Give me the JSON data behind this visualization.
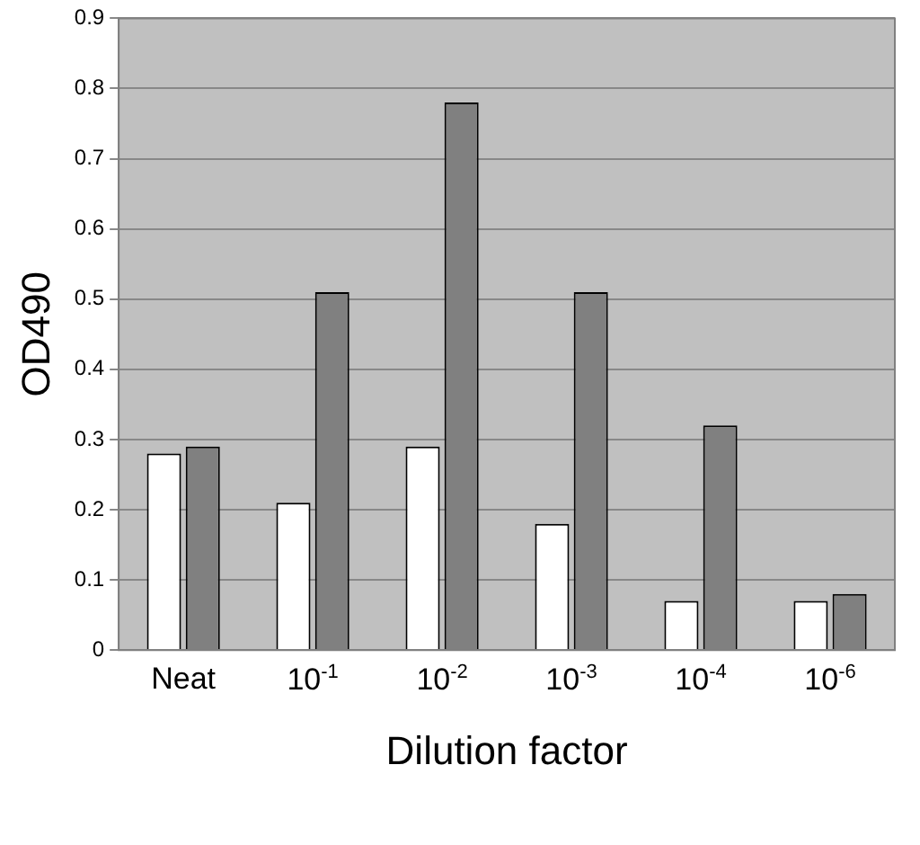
{
  "chart_data": {
    "type": "bar",
    "xlabel": "Dilution factor",
    "ylabel": "OD490",
    "categories": [
      "Neat",
      "10$^{-1}$",
      "10$^{-2}$",
      "10$^{-3}$",
      "10$^{-4}$",
      "10$^{-6}$"
    ],
    "series": [
      {
        "color": "#ffffff",
        "values": [
          0.28,
          0.21,
          0.29,
          0.18,
          0.07,
          0.07
        ]
      },
      {
        "color": "#808080",
        "values": [
          0.29,
          0.51,
          0.78,
          0.51,
          0.32,
          0.08
        ]
      }
    ],
    "ylim": [
      0,
      0.9
    ],
    "yticks": [
      0,
      0.1,
      0.2,
      0.3,
      0.4,
      0.5,
      0.6,
      0.7,
      0.8,
      0.9
    ],
    "grid": "y",
    "legend": false
  }
}
